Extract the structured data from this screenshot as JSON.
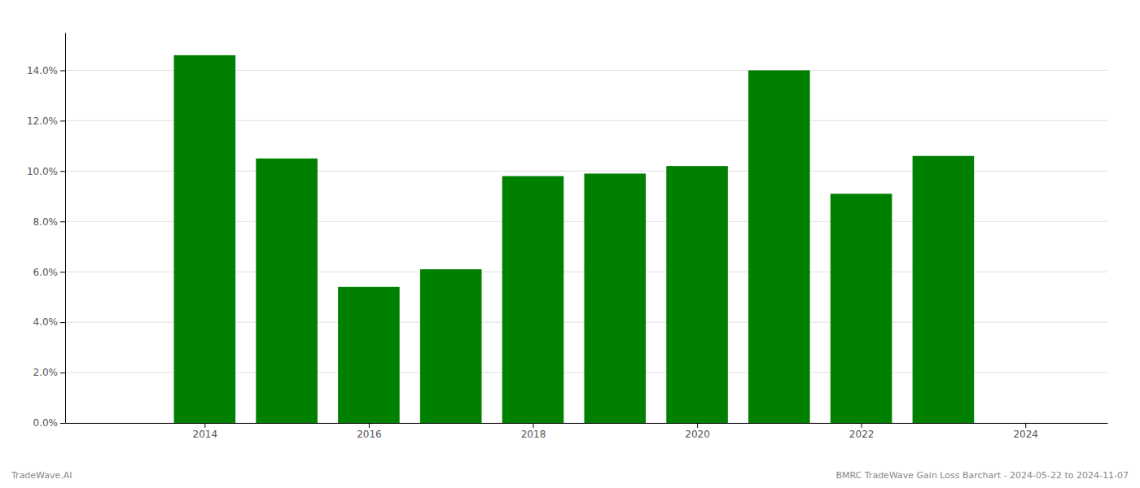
{
  "chart_data": {
    "type": "bar",
    "x": [
      2014,
      2015,
      2016,
      2017,
      2018,
      2019,
      2020,
      2021,
      2022,
      2023
    ],
    "values": [
      0.146,
      0.105,
      0.054,
      0.061,
      0.098,
      0.099,
      0.102,
      0.14,
      0.091,
      0.106
    ],
    "color": "#008000",
    "xlim": [
      2012.3,
      2025.0
    ],
    "xticks": [
      2014,
      2016,
      2018,
      2020,
      2022,
      2024
    ],
    "ylim": [
      0,
      0.155
    ],
    "yticks": [
      {
        "value": 0.0,
        "label": "0.0%"
      },
      {
        "value": 0.02,
        "label": "2.0%"
      },
      {
        "value": 0.04,
        "label": "4.0%"
      },
      {
        "value": 0.06,
        "label": "6.0%"
      },
      {
        "value": 0.08,
        "label": "8.0%"
      },
      {
        "value": 0.1,
        "label": "10.0%"
      },
      {
        "value": 0.12,
        "label": "12.0%"
      },
      {
        "value": 0.14,
        "label": "14.0%"
      }
    ],
    "grid": true,
    "annotations": [
      "TradeWave.AI",
      "BMRC TradeWave Gain Loss Barchart - 2024-05-22 to 2024-11-07"
    ]
  }
}
